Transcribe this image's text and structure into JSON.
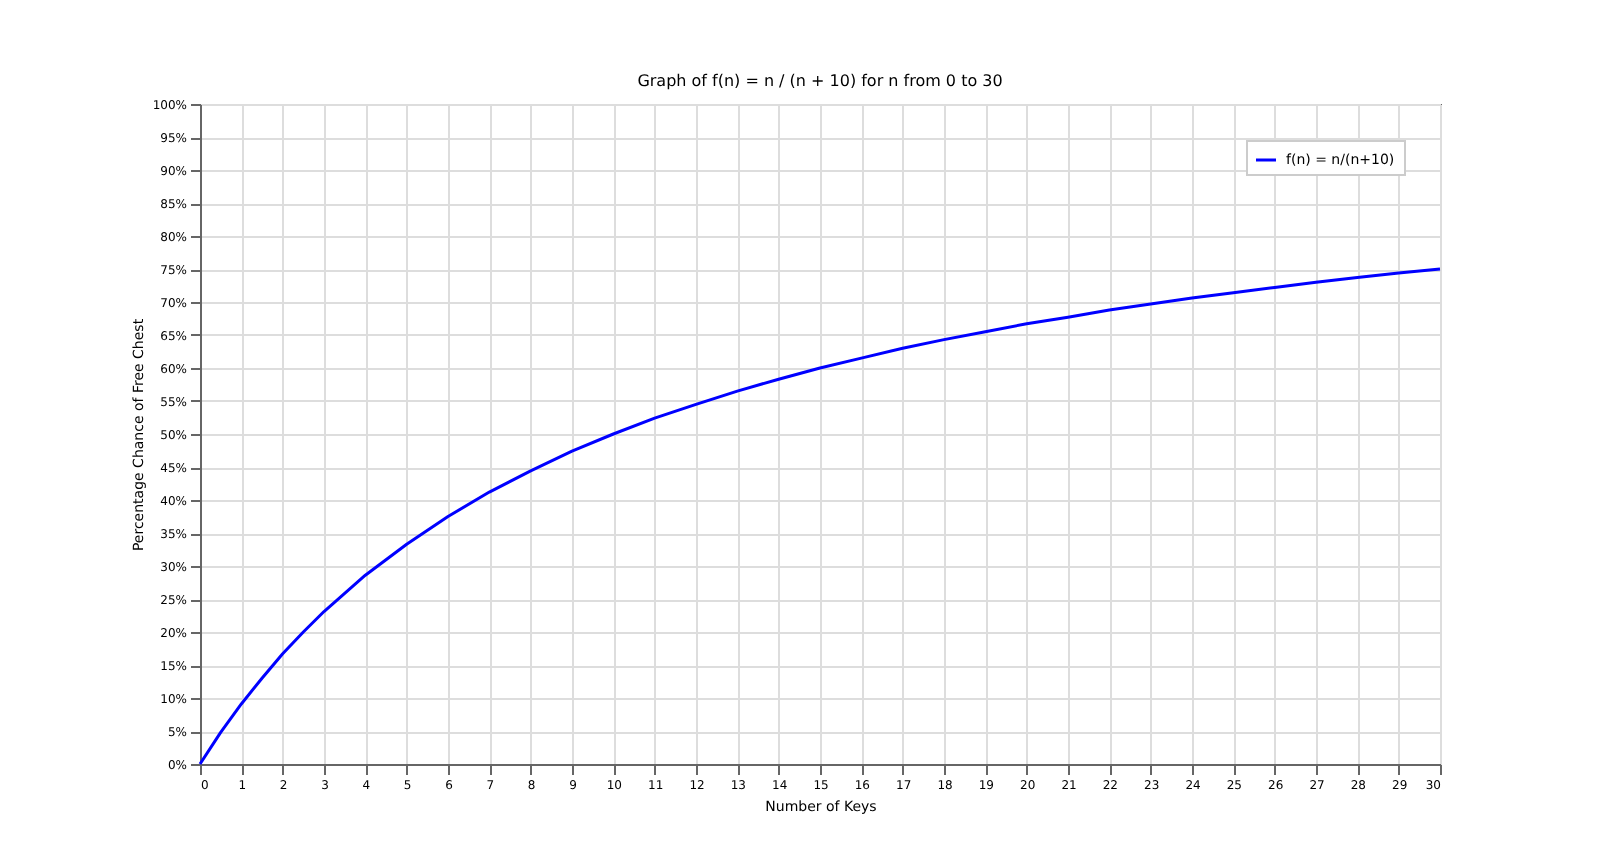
{
  "chart_data": {
    "type": "line",
    "title": "Graph of f(n) = n / (n + 10) for n from 0 to 30",
    "xlabel": "Number of Keys",
    "ylabel": "Percentage Chance of Free Chest",
    "x": [
      0,
      0.5,
      1,
      1.5,
      2,
      2.5,
      3,
      4,
      5,
      6,
      7,
      8,
      9,
      10,
      11,
      12,
      13,
      14,
      15,
      16,
      17,
      18,
      19,
      20,
      21,
      22,
      23,
      24,
      25,
      26,
      27,
      28,
      29,
      30
    ],
    "series": [
      {
        "name": "f(n) = n/(n+10)",
        "color": "#0000ff",
        "values": [
          0,
          4.8,
          9.1,
          13.0,
          16.7,
          20.0,
          23.1,
          28.6,
          33.3,
          37.5,
          41.2,
          44.4,
          47.4,
          50,
          52.4,
          54.5,
          56.5,
          58.3,
          60,
          61.5,
          63.0,
          64.3,
          65.5,
          66.7,
          67.7,
          68.8,
          69.7,
          70.6,
          71.4,
          72.2,
          73.0,
          73.7,
          74.4,
          75
        ]
      }
    ],
    "xlim": [
      0,
      30
    ],
    "xticks": [
      0,
      1,
      2,
      3,
      4,
      5,
      6,
      7,
      8,
      9,
      10,
      11,
      12,
      13,
      14,
      15,
      16,
      17,
      18,
      19,
      20,
      21,
      22,
      23,
      24,
      25,
      26,
      27,
      28,
      29,
      30
    ],
    "ylim": [
      0,
      100
    ],
    "yticks": [
      {
        "value": 0,
        "label": "0%"
      },
      {
        "value": 5,
        "label": "5%"
      },
      {
        "value": 10,
        "label": "10%"
      },
      {
        "value": 15,
        "label": "15%"
      },
      {
        "value": 20,
        "label": "20%"
      },
      {
        "value": 25,
        "label": "25%"
      },
      {
        "value": 30,
        "label": "30%"
      },
      {
        "value": 35,
        "label": "35%"
      },
      {
        "value": 40,
        "label": "40%"
      },
      {
        "value": 45,
        "label": "45%"
      },
      {
        "value": 50,
        "label": "50%"
      },
      {
        "value": 55,
        "label": "55%"
      },
      {
        "value": 60,
        "label": "60%"
      },
      {
        "value": 65,
        "label": "65%"
      },
      {
        "value": 70,
        "label": "70%"
      },
      {
        "value": 75,
        "label": "75%"
      },
      {
        "value": 80,
        "label": "80%"
      },
      {
        "value": 85,
        "label": "85%"
      },
      {
        "value": 90,
        "label": "90%"
      },
      {
        "value": 95,
        "label": "95%"
      },
      {
        "value": 100,
        "label": "100%"
      }
    ],
    "grid": true,
    "legend": "top right",
    "marker": "none",
    "line_style": "solid"
  }
}
